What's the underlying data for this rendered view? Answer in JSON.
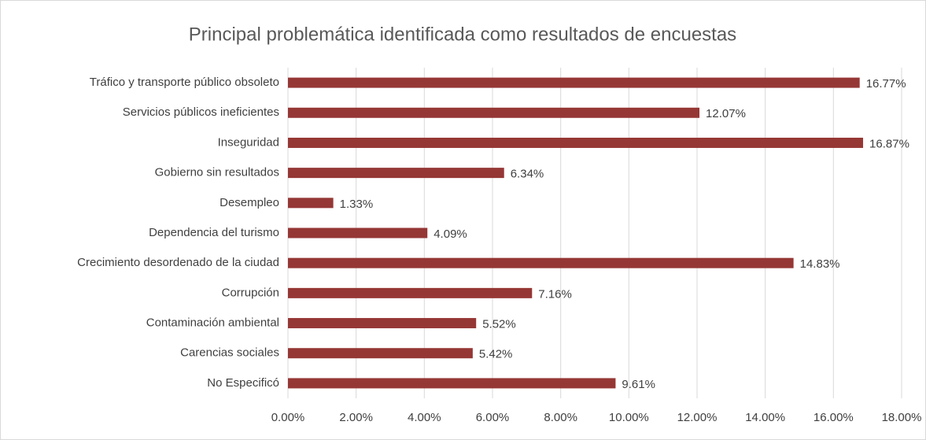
{
  "chart_data": {
    "type": "barh",
    "title": "Principal problemática identificada como resultados de encuestas",
    "categories": [
      "Tráfico y transporte público obsoleto",
      "Servicios públicos ineficientes",
      "Inseguridad",
      "Gobierno sin resultados",
      "Desempleo",
      "Dependencia del turismo",
      "Crecimiento desordenado de la ciudad",
      "Corrupción",
      "Contaminación ambiental",
      "Carencias sociales",
      "No Especificó"
    ],
    "values": [
      16.77,
      12.07,
      16.87,
      6.34,
      1.33,
      4.09,
      14.83,
      7.16,
      5.52,
      5.42,
      9.61
    ],
    "value_labels": [
      "16.77%",
      "12.07%",
      "16.87%",
      "6.34%",
      "1.33%",
      "4.09%",
      "14.83%",
      "7.16%",
      "5.52%",
      "5.42%",
      "9.61%"
    ],
    "color": "#953735",
    "xlim": [
      0,
      18
    ],
    "xticks": [
      {
        "value": 0,
        "label": "0.00%"
      },
      {
        "value": 2,
        "label": "2.00%"
      },
      {
        "value": 4,
        "label": "4.00%"
      },
      {
        "value": 6,
        "label": "6.00%"
      },
      {
        "value": 8,
        "label": "8.00%"
      },
      {
        "value": 10,
        "label": "10.00%"
      },
      {
        "value": 12,
        "label": "12.00%"
      },
      {
        "value": 14,
        "label": "14.00%"
      },
      {
        "value": 16,
        "label": "16.00%"
      },
      {
        "value": 18,
        "label": "18.00%"
      }
    ],
    "grid": true
  }
}
